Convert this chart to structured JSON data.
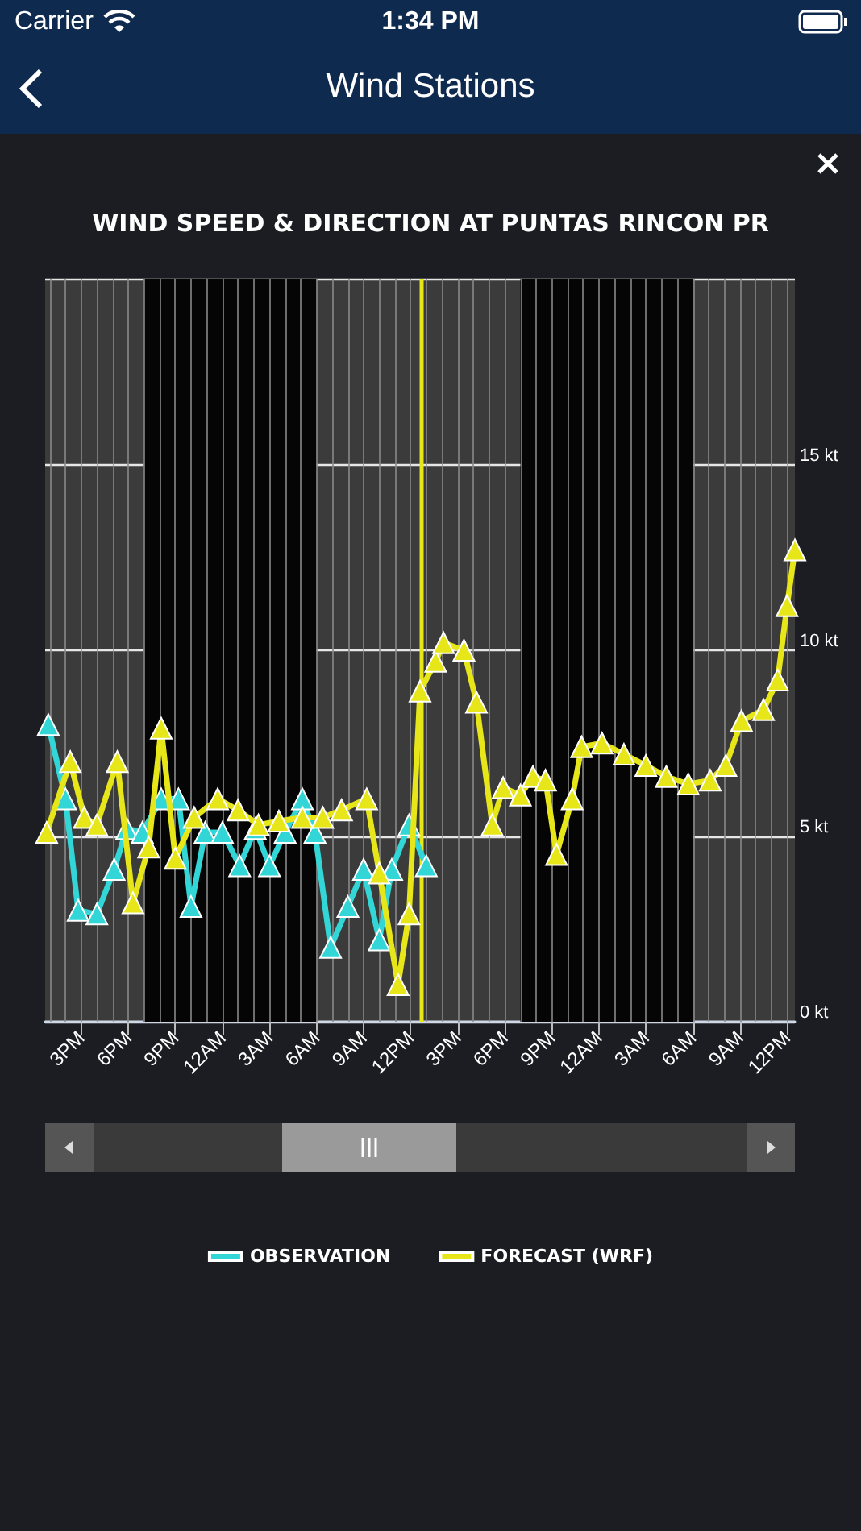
{
  "chart_data": {
    "type": "line",
    "title": "WIND SPEED & DIRECTION AT PUNTAS RINCON PR",
    "annotations": [
      "Carrier",
      "1:34 PM",
      "Wind Stations"
    ],
    "xlim": [
      "--07-16T12:42",
      "--07-18T12:30"
    ],
    "xticks": [
      {
        "value": "--07-16T15:00",
        "label": "3PM"
      },
      {
        "value": "--07-16T18:00",
        "label": "6PM"
      },
      {
        "value": "--07-16T21:00",
        "label": "9PM"
      },
      {
        "value": "--07-17T00:00",
        "label": "12AM"
      },
      {
        "value": "--07-17T03:00",
        "label": "3AM"
      },
      {
        "value": "--07-17T06:00",
        "label": "6AM"
      },
      {
        "value": "--07-17T09:00",
        "label": "9AM"
      },
      {
        "value": "--07-17T12:00",
        "label": "12PM"
      },
      {
        "value": "--07-17T15:00",
        "label": "3PM"
      },
      {
        "value": "--07-17T18:00",
        "label": "6PM"
      },
      {
        "value": "--07-17T21:00",
        "label": "9PM"
      },
      {
        "value": "--07-18T00:00",
        "label": "12AM"
      },
      {
        "value": "--07-18T03:00",
        "label": "3AM"
      },
      {
        "value": "--07-18T06:00",
        "label": "6AM"
      },
      {
        "value": "--07-18T09:00",
        "label": "9AM"
      },
      {
        "value": "--07-18T12:00",
        "label": "12PM"
      }
    ],
    "ylim": [
      0,
      20
    ],
    "yticks": [
      {
        "value": 0,
        "label": "0 kt"
      },
      {
        "value": 5,
        "label": "5 kt"
      },
      {
        "value": 10,
        "label": "10 kt"
      },
      {
        "value": 15,
        "label": "15 kt"
      },
      {
        "value": 20,
        "label": null
      }
    ],
    "series": [
      {
        "name": "OBSERVATION",
        "color": "#33d6d6",
        "x": [
          "--07-16T12:54",
          "--07-16T14:00",
          "--07-16T14:48",
          "--07-16T16:00",
          "--07-16T17:06",
          "--07-16T17:54",
          "--07-16T18:54",
          "--07-16T20:06",
          "--07-16T21:12",
          "--07-16T22:00",
          "--07-16T22:54",
          "--07-17T00:00",
          "--07-17T01:06",
          "--07-17T02:06",
          "--07-17T03:00",
          "--07-17T04:00",
          "--07-17T05:06",
          "--07-17T05:54",
          "--07-17T06:54",
          "--07-17T08:00",
          "--07-17T09:00",
          "--07-17T10:00",
          "--07-17T10:48",
          "--07-17T11:54",
          "--07-17T13:00"
        ],
        "values": [
          8.0,
          6.0,
          3.0,
          2.9,
          4.1,
          5.2,
          5.1,
          6.0,
          6.0,
          3.1,
          5.1,
          5.1,
          4.2,
          5.2,
          4.2,
          5.1,
          6.0,
          5.1,
          2.0,
          3.1,
          4.1,
          2.2,
          4.1,
          5.3,
          4.2
        ]
      },
      {
        "name": "FORECAST (WRF)",
        "color": "#e6e619",
        "x": [
          "--07-16T12:48",
          "--07-16T14:18",
          "--07-16T15:12",
          "--07-16T16:00",
          "--07-16T17:18",
          "--07-16T18:18",
          "--07-16T19:18",
          "--07-16T20:06",
          "--07-16T21:00",
          "--07-16T22:12",
          "--07-16T23:42",
          "--07-17T01:00",
          "--07-17T02:18",
          "--07-17T03:36",
          "--07-17T05:06",
          "--07-17T06:24",
          "--07-17T07:36",
          "--07-17T09:12",
          "--07-17T10:00",
          "--07-17T11:12",
          "--07-17T11:54",
          "--07-17T12:36",
          "--07-17T13:36",
          "--07-17T14:06",
          "--07-17T15:24",
          "--07-17T16:12",
          "--07-17T17:12",
          "--07-17T17:54",
          "--07-17T19:00",
          "--07-17T19:48",
          "--07-17T20:36",
          "--07-17T21:18",
          "--07-17T22:18",
          "--07-17T22:54",
          "--07-18T00:12",
          "--07-18T01:36",
          "--07-18T03:00",
          "--07-18T04:18",
          "--07-18T05:42",
          "--07-18T07:06",
          "--07-18T08:06",
          "--07-18T09:06",
          "--07-18T10:30",
          "--07-18T11:24",
          "--07-18T12:00",
          "--07-18T12:30"
        ],
        "values": [
          5.1,
          7.0,
          5.5,
          5.3,
          7.0,
          3.2,
          4.7,
          7.9,
          4.4,
          5.5,
          6.0,
          5.7,
          5.3,
          5.4,
          5.5,
          5.5,
          5.7,
          6.0,
          4.0,
          1.0,
          2.9,
          8.9,
          9.7,
          10.2,
          10.0,
          8.6,
          5.3,
          6.3,
          6.1,
          6.6,
          6.5,
          4.5,
          6.0,
          7.4,
          7.5,
          7.2,
          6.9,
          6.6,
          6.4,
          6.5,
          6.9,
          8.1,
          8.4,
          9.2,
          11.2,
          12.7
        ]
      }
    ],
    "ref_lines": [
      {
        "axis": "x",
        "value": "--07-17T12:42",
        "color": "#e6e619"
      }
    ],
    "bands": [
      {
        "axis": "x",
        "from": "--07-16T19:00",
        "to": "--07-17T06:00",
        "color": "#050505"
      },
      {
        "axis": "x",
        "from": "--07-17T19:00",
        "to": "--07-18T06:00",
        "color": "#050505"
      }
    ],
    "grid": true,
    "legend": "bottom",
    "marker": "triangle",
    "line_style": "solid"
  }
}
